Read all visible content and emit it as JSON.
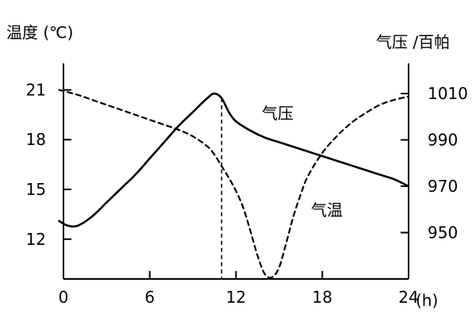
{
  "chart_data": {
    "type": "line",
    "xlabel": "(h)",
    "ylabel_left": "温度 (℃)",
    "ylabel_right": "气压 /百帕",
    "xlim": [
      0,
      24
    ],
    "ylim_left": [
      9.6,
      22.6
    ],
    "ylim_right": [
      930,
      1023
    ],
    "x_ticks": [
      "0",
      "6",
      "12",
      "18",
      "24"
    ],
    "y_ticks_left": [
      "12",
      "15",
      "18",
      "21"
    ],
    "y_ticks_right": [
      "950",
      "970",
      "990",
      "1010"
    ],
    "grid": false,
    "legend": "none",
    "series": [
      {
        "name": "气压",
        "axis": "right",
        "style": "solid",
        "color": "#000000",
        "x": [
          -0.3,
          0.3,
          1,
          2,
          3,
          4,
          5,
          6,
          7,
          8,
          9,
          10,
          10.5,
          11,
          11.5,
          12,
          13,
          14,
          15,
          16,
          17,
          18,
          19,
          20,
          21,
          22,
          23,
          24
        ],
        "values": [
          955,
          953,
          953,
          957,
          963,
          969,
          975,
          982,
          989,
          996,
          1002,
          1008,
          1010,
          1008,
          1002,
          998,
          994,
          991,
          989,
          987,
          985,
          983,
          981,
          979,
          977,
          975,
          973,
          970
        ]
      },
      {
        "name": "气温",
        "axis": "left",
        "style": "dashed",
        "color": "#000000",
        "x": [
          -0.3,
          1,
          2,
          3,
          4,
          5,
          6,
          7,
          8,
          9,
          10,
          10.5,
          11,
          11.5,
          12,
          12.5,
          13,
          13.5,
          14,
          14.5,
          15,
          15.5,
          16,
          16.5,
          17,
          18,
          19,
          20,
          21,
          22,
          23,
          24
        ],
        "values": [
          21.0,
          20.7,
          20.4,
          20.1,
          19.8,
          19.5,
          19.2,
          18.9,
          18.6,
          18.2,
          17.6,
          17.1,
          16.4,
          15.7,
          14.9,
          13.9,
          12.5,
          11.0,
          9.9,
          9.7,
          10.3,
          11.8,
          13.4,
          14.7,
          15.8,
          17.2,
          18.2,
          19.0,
          19.6,
          20.1,
          20.4,
          20.6
        ]
      }
    ],
    "reference_line": {
      "x": 11,
      "style": "dashed"
    }
  }
}
